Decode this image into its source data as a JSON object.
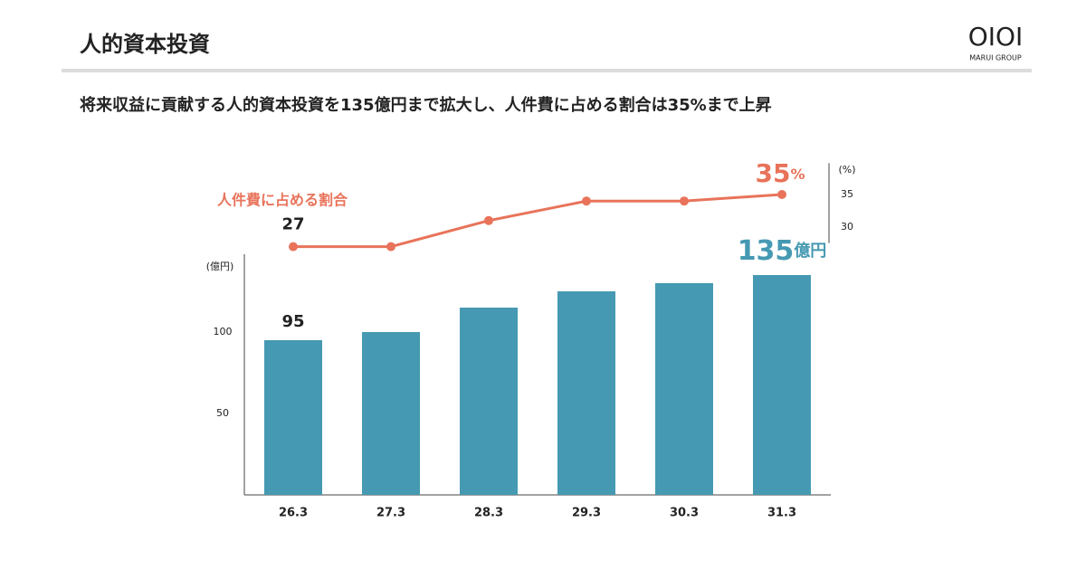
{
  "header": {
    "title": "人的資本投資",
    "logo": "OIOI",
    "logo_sub": "MARUI GROUP"
  },
  "chart_data": {
    "type": "bar",
    "title": "将来収益に貢献する人的資本投資を135億円まで拡大し、人件費に占める割合は35%まで上昇",
    "categories": [
      "26.3",
      "27.3",
      "28.3",
      "29.3",
      "30.3",
      "31.3"
    ],
    "y_unit": "(億円)",
    "y2_unit": "(%)",
    "ylim": [
      0,
      150
    ],
    "yticks": [
      50,
      100
    ],
    "y2lim": [
      27,
      39
    ],
    "y2ticks": [
      30,
      35
    ],
    "series": [
      {
        "type": "bar",
        "color": "#4699b2",
        "values": [
          95,
          100,
          115,
          125,
          130,
          135
        ],
        "value_labels": [
          "95",
          null,
          null,
          null,
          null,
          "135億円"
        ]
      },
      {
        "type": "line",
        "name": "人件費に占める割合",
        "axis": "y2",
        "color": "#e8735a",
        "values": [
          27,
          27,
          31,
          34,
          34,
          35
        ],
        "value_labels": [
          "27",
          null,
          null,
          null,
          null,
          "35%"
        ]
      }
    ]
  }
}
